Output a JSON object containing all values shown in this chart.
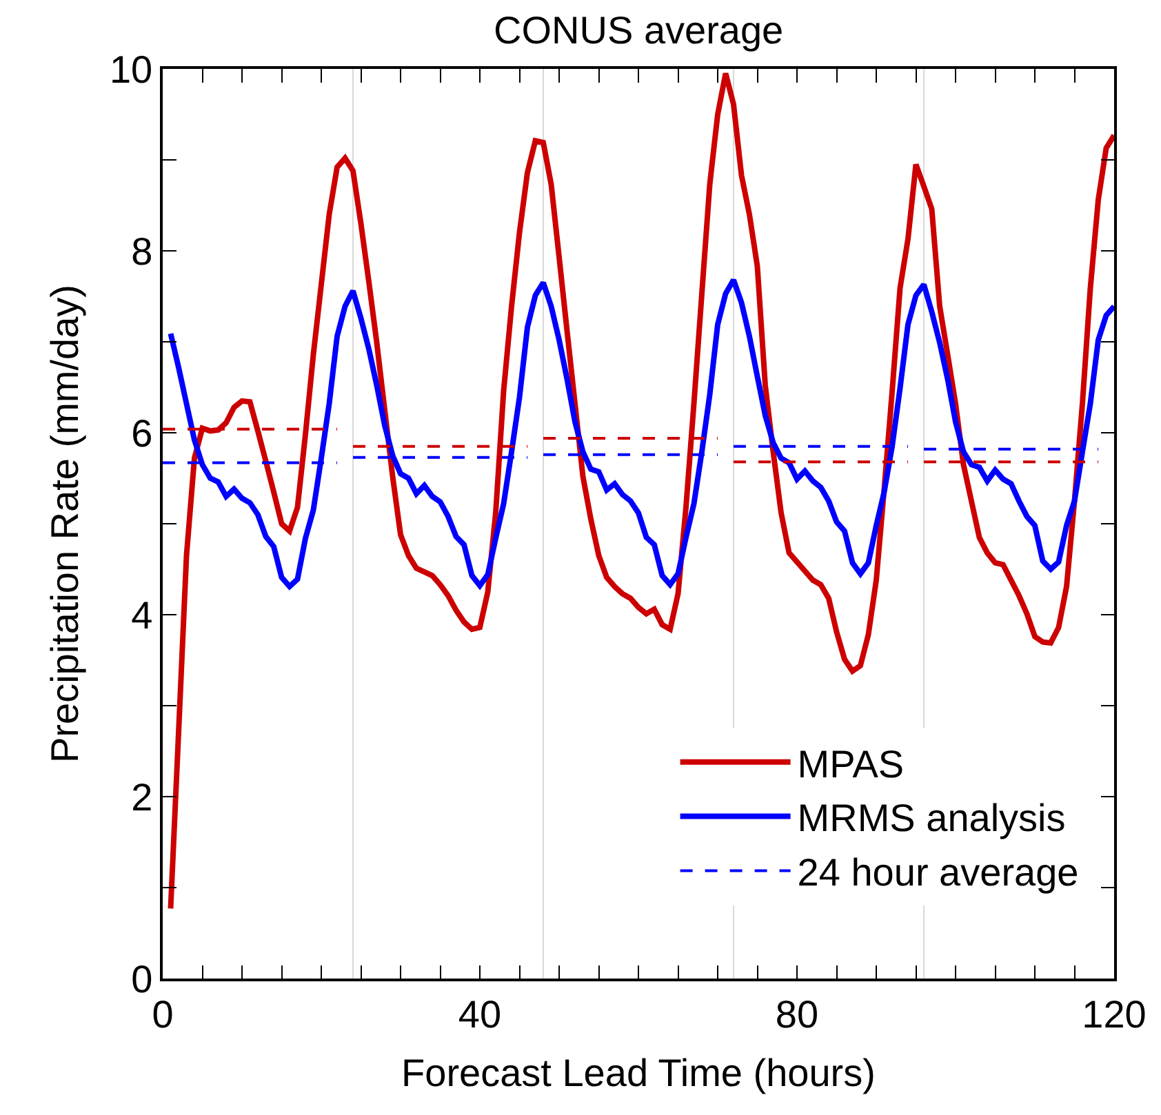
{
  "chart_data": {
    "type": "line",
    "title": "CONUS average",
    "xlabel": "Forecast Lead Time (hours)",
    "ylabel": "Precipitation Rate (mm/day)",
    "xlim": [
      0,
      120
    ],
    "ylim": [
      0,
      10
    ],
    "xticks": [
      0,
      {
        "value": 5,
        "label": null
      },
      {
        "value": 10,
        "label": null
      },
      {
        "value": 15,
        "label": null
      },
      {
        "value": 20,
        "label": null
      },
      {
        "value": 25,
        "label": null
      },
      {
        "value": 30,
        "label": null
      },
      {
        "value": 35,
        "label": null
      },
      40,
      {
        "value": 45,
        "label": null
      },
      {
        "value": 50,
        "label": null
      },
      {
        "value": 55,
        "label": null
      },
      {
        "value": 60,
        "label": null
      },
      {
        "value": 65,
        "label": null
      },
      {
        "value": 70,
        "label": null
      },
      {
        "value": 75,
        "label": null
      },
      80,
      {
        "value": 85,
        "label": null
      },
      {
        "value": 90,
        "label": null
      },
      {
        "value": 95,
        "label": null
      },
      {
        "value": 100,
        "label": null
      },
      {
        "value": 105,
        "label": null
      },
      {
        "value": 110,
        "label": null
      },
      {
        "value": 115,
        "label": null
      },
      120
    ],
    "yticks": [
      0,
      {
        "value": 1,
        "label": null
      },
      2,
      {
        "value": 3,
        "label": null
      },
      4,
      {
        "value": 5,
        "label": null
      },
      6,
      {
        "value": 7,
        "label": null
      },
      8,
      {
        "value": 9,
        "label": null
      },
      10
    ],
    "grid": false,
    "legend": "bottom right",
    "marker": "none",
    "line_style": "solid",
    "ref_lines": [
      {
        "axis": "x",
        "value": 24,
        "color": "#d9d9d9"
      },
      {
        "axis": "x",
        "value": 48,
        "color": "#d9d9d9"
      },
      {
        "axis": "x",
        "value": 72,
        "color": "#d9d9d9"
      },
      {
        "axis": "x",
        "value": 96,
        "color": "#d9d9d9"
      }
    ],
    "series": [
      {
        "name": "MPAS",
        "color": "#cc0000",
        "x": [
          1,
          2,
          3,
          4,
          5,
          6,
          7,
          8,
          9,
          10,
          11,
          12,
          13,
          14,
          15,
          16,
          17,
          18,
          19,
          20,
          21,
          22,
          23,
          24,
          25,
          26,
          27,
          28,
          29,
          30,
          31,
          32,
          33,
          34,
          35,
          36,
          37,
          38,
          39,
          40,
          41,
          42,
          43,
          44,
          45,
          46,
          47,
          48,
          49,
          50,
          51,
          52,
          53,
          54,
          55,
          56,
          57,
          58,
          59,
          60,
          61,
          62,
          63,
          64,
          65,
          66,
          67,
          68,
          69,
          70,
          71,
          72,
          73,
          74,
          75,
          76,
          77,
          78,
          79,
          80,
          81,
          82,
          83,
          84,
          85,
          86,
          87,
          88,
          89,
          90,
          91,
          92,
          93,
          94,
          95,
          96,
          97,
          98,
          99,
          100,
          101,
          102,
          103,
          104,
          105,
          106,
          107,
          108,
          109,
          110,
          111,
          112,
          113,
          114,
          115,
          116,
          117,
          118,
          119,
          120
        ],
        "values": [
          0.77,
          2.7,
          4.65,
          5.72,
          6.05,
          6.02,
          6.03,
          6.11,
          6.28,
          6.35,
          6.34,
          6.02,
          5.69,
          5.35,
          5.0,
          4.92,
          5.18,
          5.98,
          6.86,
          7.63,
          8.4,
          8.92,
          9.02,
          8.88,
          8.3,
          7.66,
          6.99,
          6.25,
          5.52,
          4.88,
          4.65,
          4.51,
          4.47,
          4.43,
          4.33,
          4.21,
          4.05,
          3.92,
          3.84,
          3.86,
          4.25,
          5.12,
          6.46,
          7.39,
          8.2,
          8.86,
          9.21,
          9.19,
          8.73,
          7.93,
          7.12,
          6.32,
          5.52,
          5.05,
          4.65,
          4.41,
          4.31,
          4.23,
          4.18,
          4.08,
          4.01,
          4.06,
          3.89,
          3.84,
          4.23,
          5.18,
          6.32,
          7.53,
          8.73,
          9.5,
          9.95,
          9.61,
          8.83,
          8.4,
          7.83,
          6.52,
          5.79,
          5.12,
          4.68,
          4.58,
          4.48,
          4.38,
          4.33,
          4.18,
          3.81,
          3.51,
          3.38,
          3.44,
          3.78,
          4.38,
          5.38,
          6.45,
          7.59,
          8.13,
          8.95,
          8.71,
          8.46,
          7.39,
          6.86,
          6.32,
          5.65,
          5.25,
          4.85,
          4.68,
          4.57,
          4.55,
          4.38,
          4.21,
          4.01,
          3.76,
          3.7,
          3.69,
          3.86,
          4.31,
          5.25,
          6.32,
          7.59,
          8.56,
          9.13,
          9.27
        ]
      },
      {
        "name": "MRMS analysis",
        "color": "#0000ff",
        "x": [
          1,
          2,
          3,
          4,
          5,
          6,
          7,
          8,
          9,
          10,
          11,
          12,
          13,
          14,
          15,
          16,
          17,
          18,
          19,
          20,
          21,
          22,
          23,
          24,
          25,
          26,
          27,
          28,
          29,
          30,
          31,
          32,
          33,
          34,
          35,
          36,
          37,
          38,
          39,
          40,
          41,
          42,
          43,
          44,
          45,
          46,
          47,
          48,
          49,
          50,
          51,
          52,
          53,
          54,
          55,
          56,
          57,
          58,
          59,
          60,
          61,
          62,
          63,
          64,
          65,
          66,
          67,
          68,
          69,
          70,
          71,
          72,
          73,
          74,
          75,
          76,
          77,
          78,
          79,
          80,
          81,
          82,
          83,
          84,
          85,
          86,
          87,
          88,
          89,
          90,
          91,
          92,
          93,
          94,
          95,
          96,
          97,
          98,
          99,
          100,
          101,
          102,
          103,
          104,
          105,
          106,
          107,
          108,
          109,
          110,
          111,
          112,
          113,
          114,
          115,
          116,
          117,
          118,
          119,
          120
        ],
        "values": [
          7.09,
          6.72,
          6.32,
          5.92,
          5.65,
          5.5,
          5.46,
          5.3,
          5.38,
          5.28,
          5.23,
          5.1,
          4.86,
          4.75,
          4.41,
          4.31,
          4.39,
          4.84,
          5.15,
          5.72,
          6.32,
          7.06,
          7.39,
          7.56,
          7.26,
          6.92,
          6.52,
          6.08,
          5.75,
          5.55,
          5.5,
          5.33,
          5.42,
          5.3,
          5.24,
          5.08,
          4.86,
          4.77,
          4.43,
          4.32,
          4.44,
          4.84,
          5.22,
          5.79,
          6.39,
          7.16,
          7.51,
          7.65,
          7.39,
          7.02,
          6.59,
          6.12,
          5.79,
          5.6,
          5.57,
          5.37,
          5.44,
          5.32,
          5.25,
          5.12,
          4.85,
          4.77,
          4.43,
          4.33,
          4.45,
          4.85,
          5.22,
          5.79,
          6.42,
          7.19,
          7.53,
          7.68,
          7.43,
          7.06,
          6.62,
          6.19,
          5.89,
          5.72,
          5.67,
          5.49,
          5.58,
          5.47,
          5.4,
          5.25,
          5.02,
          4.92,
          4.57,
          4.45,
          4.57,
          4.98,
          5.35,
          5.85,
          6.49,
          7.19,
          7.51,
          7.63,
          7.33,
          6.99,
          6.59,
          6.12,
          5.79,
          5.65,
          5.62,
          5.47,
          5.59,
          5.49,
          5.44,
          5.25,
          5.08,
          4.98,
          4.59,
          4.5,
          4.58,
          4.98,
          5.25,
          5.79,
          6.32,
          7.02,
          7.29,
          7.39
        ]
      },
      {
        "name": "24 hour average",
        "color": "#0000ff",
        "line_style": "dashed",
        "x": [
          0,
          22
        ],
        "values": [
          5.67,
          5.67
        ]
      },
      {
        "color": "#0000ff",
        "line_style": "dashed",
        "x": [
          24,
          46
        ],
        "values": [
          5.73,
          5.73
        ]
      },
      {
        "color": "#0000ff",
        "line_style": "dashed",
        "x": [
          48,
          70
        ],
        "values": [
          5.76,
          5.76
        ]
      },
      {
        "color": "#0000ff",
        "line_style": "dashed",
        "x": [
          72,
          94
        ],
        "values": [
          5.85,
          5.85
        ]
      },
      {
        "color": "#0000ff",
        "line_style": "dashed",
        "x": [
          96,
          118
        ],
        "values": [
          5.82,
          5.82
        ]
      },
      {
        "color": "#cc0000",
        "line_style": "dashed",
        "x": [
          0,
          22
        ],
        "values": [
          6.04,
          6.04
        ]
      },
      {
        "color": "#cc0000",
        "line_style": "dashed",
        "x": [
          24,
          46
        ],
        "values": [
          5.85,
          5.85
        ]
      },
      {
        "color": "#cc0000",
        "line_style": "dashed",
        "x": [
          48,
          70
        ],
        "values": [
          5.94,
          5.94
        ]
      },
      {
        "color": "#cc0000",
        "line_style": "dashed",
        "x": [
          72,
          94
        ],
        "values": [
          5.68,
          5.68
        ]
      },
      {
        "color": "#cc0000",
        "line_style": "dashed",
        "x": [
          96,
          118
        ],
        "values": [
          5.68,
          5.68
        ]
      }
    ]
  }
}
